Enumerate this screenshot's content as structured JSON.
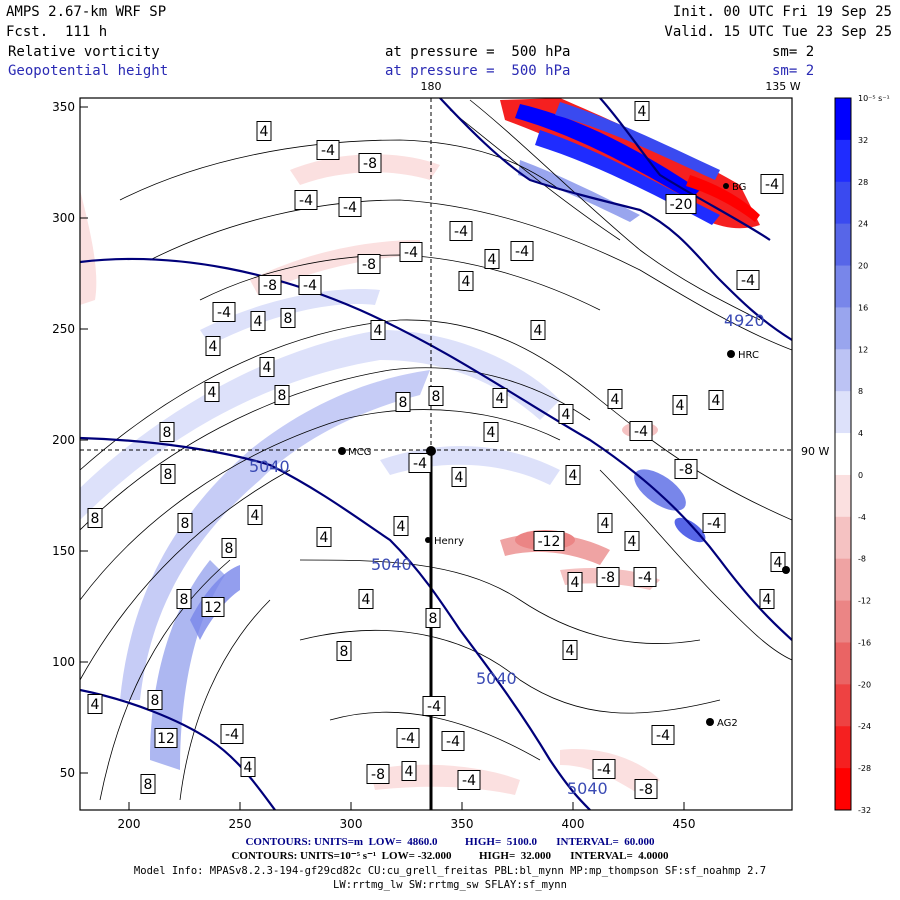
{
  "header": {
    "model": "AMPS 2.67-km WRF SP",
    "forecast": "Fcst.  111 h",
    "init": "Init. 00 UTC Fri 19 Sep 25",
    "valid": "Valid. 15 UTC Tue 23 Sep 25",
    "field1_name": "Relative vorticity",
    "field1_level": "at pressure =  500 hPa",
    "field1_sm": "sm= 2",
    "field2_name": "Geopotential height",
    "field2_level": "at pressure =  500 hPa",
    "field2_sm": "sm= 2"
  },
  "map": {
    "x_ticks": [
      "200",
      "250",
      "300",
      "350",
      "400",
      "450"
    ],
    "y_ticks": [
      "350",
      "300",
      "250",
      "200",
      "150",
      "100",
      "50"
    ],
    "meridian_labels": {
      "lon180": "180",
      "lon135w": "135 W",
      "lon90w": "90 W"
    },
    "stations": [
      "MCG",
      "Henry",
      "HRC",
      "AG2",
      "BG"
    ],
    "geopotential_labels": [
      "4920",
      "5040",
      "5040",
      "5040",
      "5040"
    ],
    "vorticity_labels_positive": [
      "4",
      "8",
      "12"
    ],
    "vorticity_labels_negative": [
      "-4",
      "-8",
      "-12",
      "-20"
    ]
  },
  "colorbar": {
    "units": "10⁻⁵ s⁻¹",
    "labels": [
      "32",
      "28",
      "24",
      "20",
      "16",
      "12",
      "8",
      "4",
      "0",
      "-4",
      "-8",
      "-12",
      "-16",
      "-20",
      "-24",
      "-28",
      "-32"
    ],
    "colors": [
      "#0000ff",
      "#1f2cff",
      "#3a4af0",
      "#5766e8",
      "#7886ea",
      "#99a5ee",
      "#bcc3f4",
      "#dde1fa",
      "#ffffff",
      "#fbe0e0",
      "#f5c2c2",
      "#efa3a3",
      "#eb8585",
      "#ea6464",
      "#ee4242",
      "#f52020",
      "#ff0000"
    ]
  },
  "footer": {
    "line1": "CONTOURS: UNITS=m  LOW=  4860.0          HIGH=  5100.0       INTERVAL=  60.000",
    "line2": "CONTOURS: UNITS=10⁻⁵ s⁻¹  LOW= -32.000          HIGH=  32.000       INTERVAL=  4.0000",
    "line3": "Model Info: MPASv8.2.3-194-gf29cd82c CU:cu_grell_freitas PBL:bl_mynn MP:mp_thompson SF:sf_noahmp 2.7",
    "line4": "LW:rrtmg_lw SW:rrtmg_sw SFLAY:sf_mynn"
  }
}
